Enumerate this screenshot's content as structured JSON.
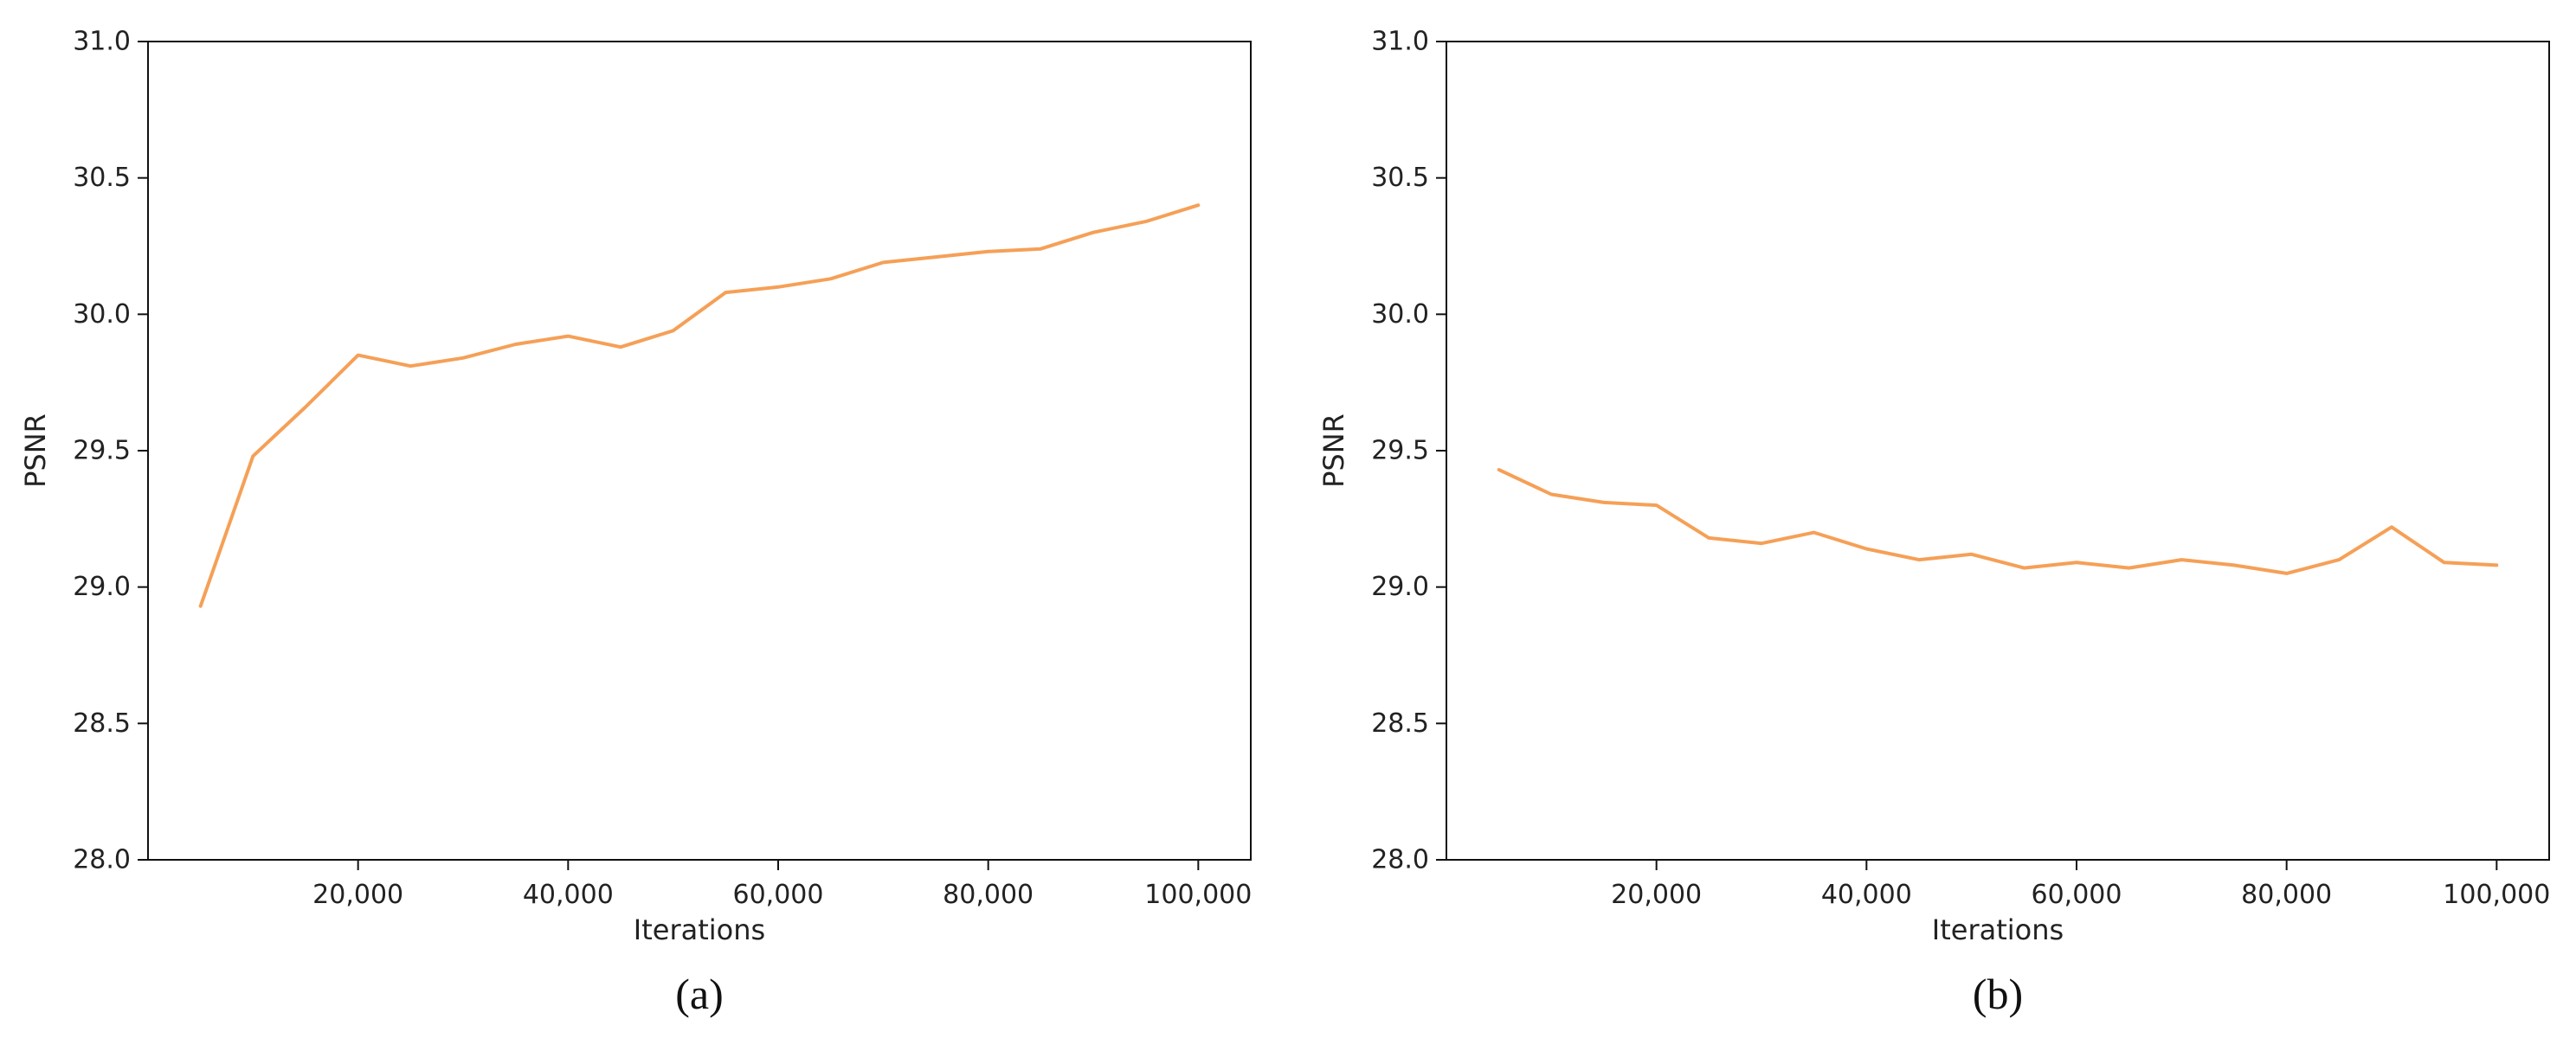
{
  "chart_data": [
    {
      "type": "line",
      "caption": "(a)",
      "xlabel": "Iterations",
      "ylabel": "PSNR",
      "xlim": [
        0,
        105000
      ],
      "ylim": [
        28.0,
        31.0
      ],
      "xticks": [
        20000,
        40000,
        60000,
        80000,
        100000
      ],
      "xtick_labels": [
        "20,000",
        "40,000",
        "60,000",
        "80,000",
        "100,000"
      ],
      "yticks": [
        28.0,
        28.5,
        29.0,
        29.5,
        30.0,
        30.5,
        31.0
      ],
      "ytick_labels": [
        "28.0",
        "28.5",
        "29.0",
        "29.5",
        "30.0",
        "30.5",
        "31.0"
      ],
      "grid": false,
      "color": "#f5a057",
      "x": [
        5000,
        10000,
        15000,
        20000,
        25000,
        30000,
        35000,
        40000,
        45000,
        50000,
        55000,
        60000,
        65000,
        70000,
        75000,
        80000,
        85000,
        90000,
        95000,
        100000
      ],
      "y": [
        28.93,
        29.48,
        29.66,
        29.85,
        29.81,
        29.84,
        29.89,
        29.92,
        29.88,
        29.94,
        30.08,
        30.1,
        30.13,
        30.19,
        30.21,
        30.23,
        30.24,
        30.3,
        30.34,
        30.4
      ]
    },
    {
      "type": "line",
      "caption": "(b)",
      "xlabel": "Iterations",
      "ylabel": "PSNR",
      "xlim": [
        0,
        105000
      ],
      "ylim": [
        28.0,
        31.0
      ],
      "xticks": [
        20000,
        40000,
        60000,
        80000,
        100000
      ],
      "xtick_labels": [
        "20,000",
        "40,000",
        "60,000",
        "80,000",
        "100,000"
      ],
      "yticks": [
        28.0,
        28.5,
        29.0,
        29.5,
        30.0,
        30.5,
        31.0
      ],
      "ytick_labels": [
        "28.0",
        "28.5",
        "29.0",
        "29.5",
        "30.0",
        "30.5",
        "31.0"
      ],
      "grid": false,
      "color": "#f5a057",
      "x": [
        5000,
        10000,
        15000,
        20000,
        25000,
        30000,
        35000,
        40000,
        45000,
        50000,
        55000,
        60000,
        65000,
        70000,
        75000,
        80000,
        85000,
        90000,
        95000,
        100000
      ],
      "y": [
        29.43,
        29.34,
        29.31,
        29.3,
        29.18,
        29.16,
        29.2,
        29.14,
        29.1,
        29.12,
        29.07,
        29.09,
        29.07,
        29.1,
        29.08,
        29.05,
        29.1,
        29.22,
        29.09,
        29.08
      ]
    }
  ]
}
